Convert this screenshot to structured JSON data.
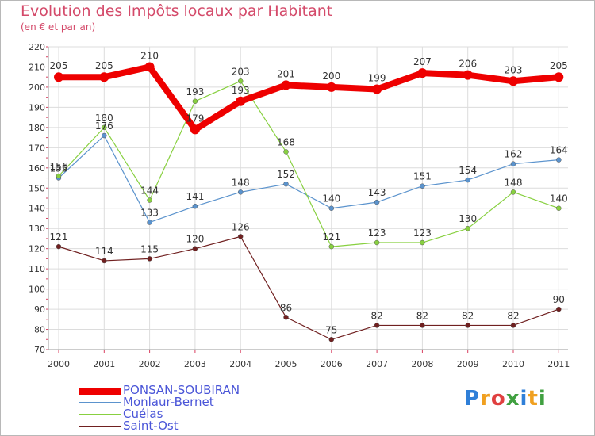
{
  "header": {
    "title": "Evolution des Impôts locaux par Habitant",
    "subtitle": "(en € et par an)"
  },
  "logo": {
    "text": "Proxiti",
    "letters": [
      "P",
      "r",
      "o",
      "x",
      "i",
      "t",
      "i"
    ],
    "colors": [
      "#2f7fd8",
      "#f0a020",
      "#e04040",
      "#40a040",
      "#2f7fd8",
      "#f0a020",
      "#40a040"
    ]
  },
  "chart_data": {
    "type": "line",
    "title": "Evolution des Impôts locaux par Habitant",
    "subtitle": "(en € et par an)",
    "xlabel": "",
    "ylabel": "",
    "categories": [
      "2000",
      "2001",
      "2002",
      "2003",
      "2004",
      "2005",
      "2006",
      "2007",
      "2008",
      "2009",
      "2010",
      "2011"
    ],
    "ylim": [
      70,
      220
    ],
    "yticks": [
      70,
      80,
      90,
      100,
      110,
      120,
      130,
      140,
      150,
      160,
      170,
      180,
      190,
      200,
      210,
      220
    ],
    "grid": true,
    "legend_position": "bottom-left",
    "series": [
      {
        "name": "PONSAN-SOUBIRAN",
        "color": "#ee0000",
        "values": [
          205,
          205,
          210,
          179,
          193,
          201,
          200,
          199,
          207,
          206,
          203,
          205
        ]
      },
      {
        "name": "Monlaur-Bernet",
        "color": "#5b93cd",
        "values": [
          155,
          176,
          133,
          141,
          148,
          152,
          140,
          143,
          151,
          154,
          162,
          164
        ]
      },
      {
        "name": "Cuélas",
        "color": "#88d040",
        "values": [
          156,
          180,
          144,
          193,
          203,
          168,
          121,
          123,
          123,
          130,
          148,
          140
        ]
      },
      {
        "name": "Saint-Ost",
        "color": "#702020",
        "values": [
          121,
          114,
          115,
          120,
          126,
          86,
          75,
          82,
          82,
          82,
          82,
          90
        ]
      }
    ]
  }
}
